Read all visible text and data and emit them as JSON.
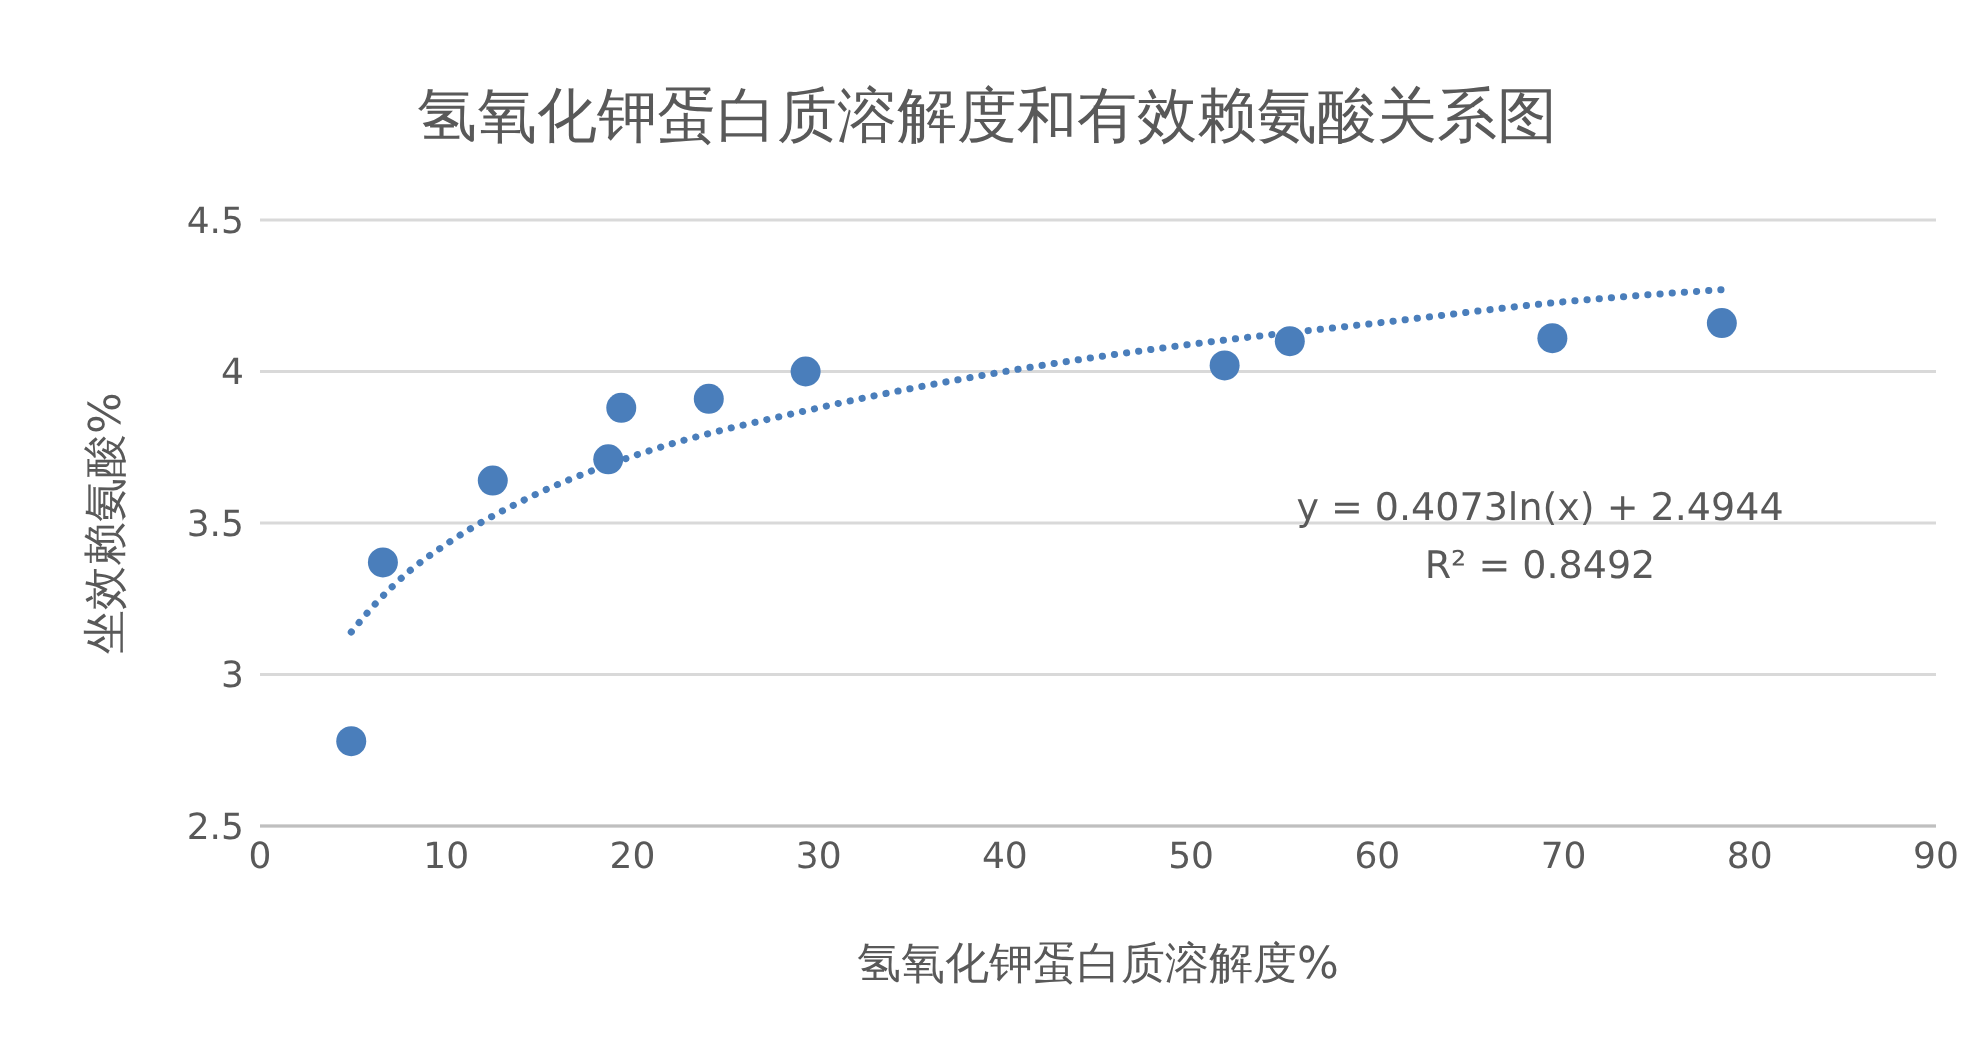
{
  "chart_data": {
    "type": "scatter",
    "title": "氢氧化钾蛋白质溶解度和有效赖氨酸关系图",
    "xlabel": "氢氧化钾蛋白质溶解度%",
    "ylabel": "坐效赖氨酸%",
    "annotations": [
      "y = 0.4073ln(x) + 2.4944",
      "R² = 0.8492"
    ],
    "xlim": [
      0,
      90
    ],
    "xticks": [
      0,
      10,
      20,
      30,
      40,
      50,
      60,
      70,
      80,
      90
    ],
    "ylim": [
      2.5,
      4.5
    ],
    "yticks": [
      2.5,
      3,
      3.5,
      4,
      4.5
    ],
    "grid": "y",
    "marker": "circle",
    "series": [
      {
        "type": "scatter",
        "color": "#4a7ebb",
        "x": [
          4.9,
          6.6,
          12.5,
          18.7,
          19.4,
          24.1,
          29.3,
          51.8,
          55.3,
          69.4,
          78.5
        ],
        "values": [
          2.78,
          3.37,
          3.64,
          3.71,
          3.88,
          3.91,
          4.0,
          4.02,
          4.1,
          4.11,
          4.16
        ]
      },
      {
        "type": "line",
        "color": "#4a7ebb",
        "marker": "none",
        "line_style": "dotted",
        "x": [
          4.9,
          6,
          8,
          10,
          15,
          20,
          30,
          40,
          50,
          60,
          70,
          78.5
        ],
        "values": [
          3.14,
          3.22,
          3.34,
          3.43,
          3.6,
          3.72,
          3.88,
          4.0,
          4.09,
          4.16,
          4.23,
          4.27
        ]
      }
    ]
  }
}
